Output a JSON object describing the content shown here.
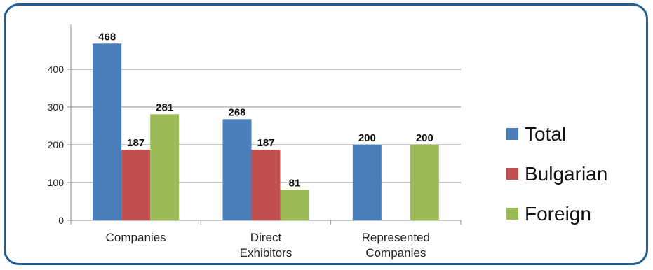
{
  "chart_data": {
    "type": "bar",
    "categories": [
      [
        "Companies"
      ],
      [
        "Direct",
        "Exhibitors"
      ],
      [
        "Represented",
        "Companies"
      ]
    ],
    "series": [
      {
        "name": "Total",
        "color": "#4a7ebb",
        "values": [
          468,
          268,
          200
        ]
      },
      {
        "name": "Bulgarian",
        "color": "#c0504d",
        "values": [
          187,
          187,
          null
        ]
      },
      {
        "name": "Foreign",
        "color": "#9bbb59",
        "values": [
          281,
          81,
          200
        ]
      }
    ],
    "data_labels": [
      [
        "468",
        "268",
        "200"
      ],
      [
        "187",
        "187",
        ""
      ],
      [
        "281",
        "81",
        "200"
      ]
    ],
    "yticks": [
      0,
      100,
      200,
      300,
      400
    ],
    "ylim": [
      0,
      500
    ],
    "grid": true,
    "legend_position": "right",
    "title": "",
    "xlabel": "",
    "ylabel": ""
  }
}
